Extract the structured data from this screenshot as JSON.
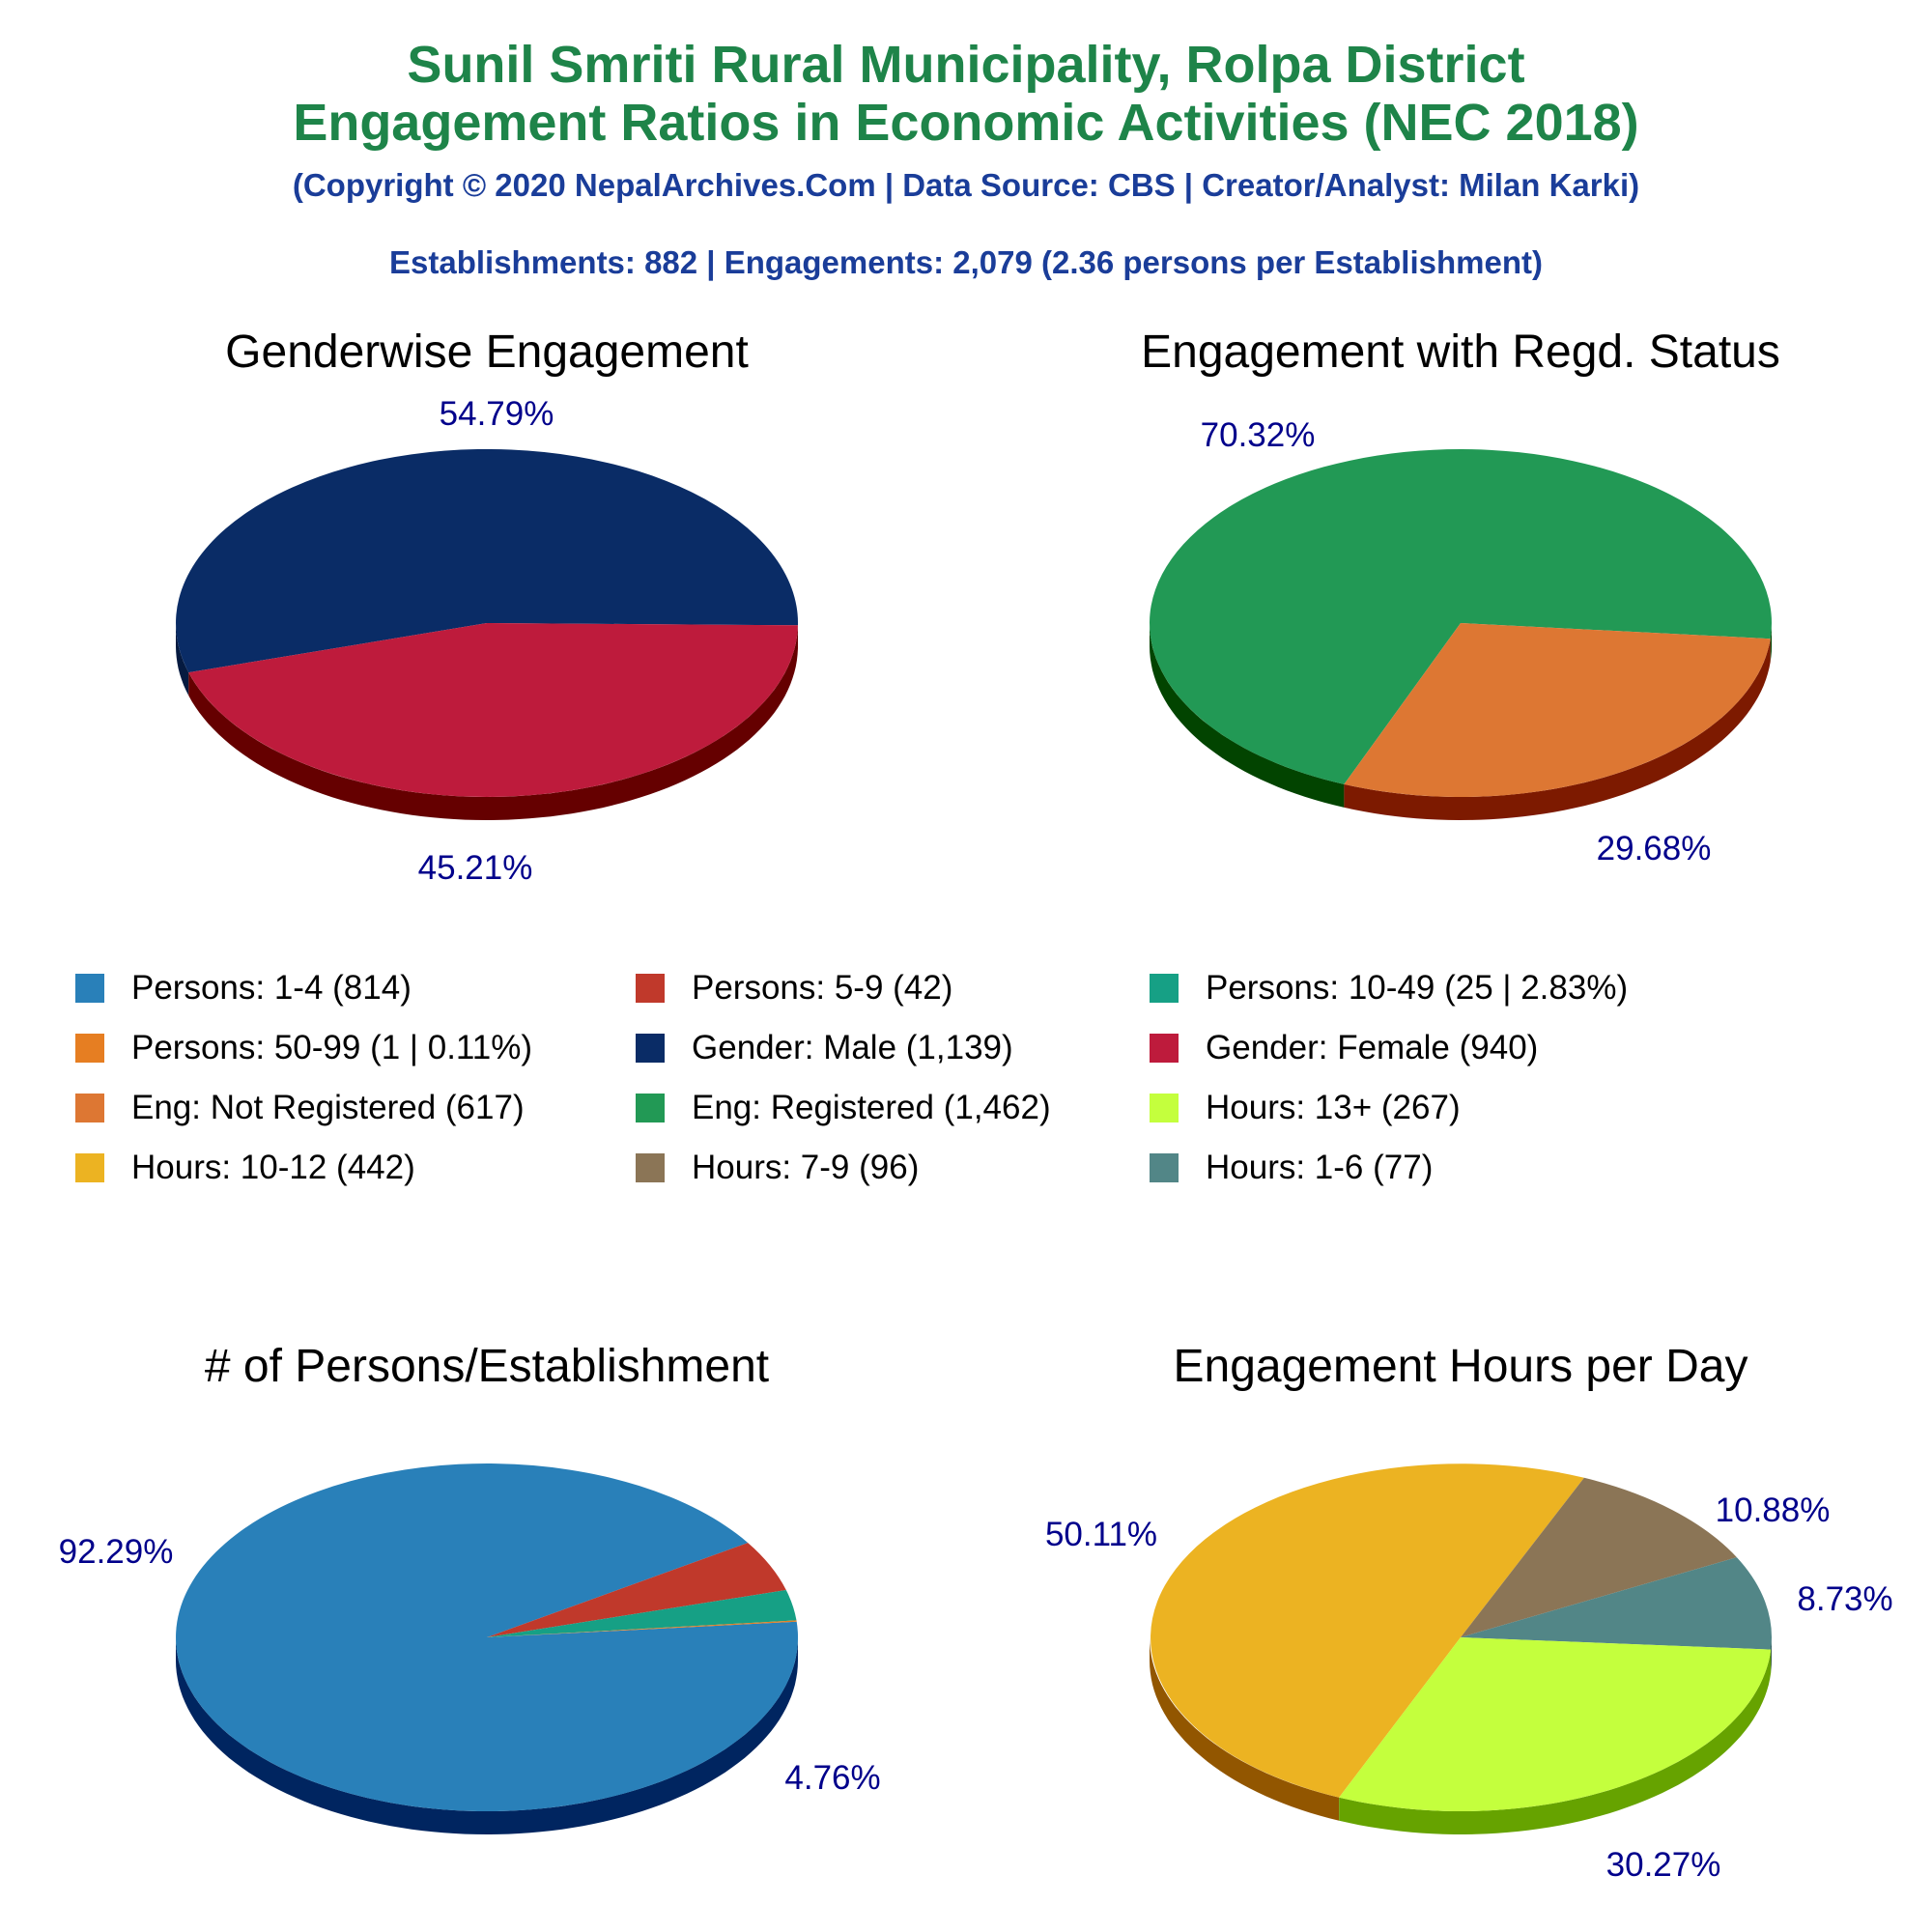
{
  "header": {
    "title_line1": "Sunil Smriti Rural Municipality, Rolpa District",
    "title_line2": "Engagement Ratios in Economic Activities (NEC 2018)",
    "subtitle": "(Copyright © 2020 NepalArchives.Com | Data Source: CBS | Creator/Analyst: Milan Karki)",
    "stats": "Establishments: 882 | Engagements: 2,079 (2.36 persons per Establishment)"
  },
  "colors": {
    "title": "#1e8449",
    "subtitle": "#1a3d99",
    "pct_label": "#00008b",
    "chart_title": "#000000"
  },
  "legend": [
    {
      "label": "Persons: 1-4 (814)",
      "color": "#2980b9"
    },
    {
      "label": "Persons: 5-9 (42)",
      "color": "#c0392b"
    },
    {
      "label": "Persons: 10-49 (25 | 2.83%)",
      "color": "#16a085"
    },
    {
      "label": "Persons: 50-99 (1 | 0.11%)",
      "color": "#e67e22"
    },
    {
      "label": "Gender: Male (1,139)",
      "color": "#0a2c66"
    },
    {
      "label": "Gender: Female (940)",
      "color": "#be1b3c"
    },
    {
      "label": "Eng: Not Registered (617)",
      "color": "#dd7733"
    },
    {
      "label": "Eng: Registered (1,462)",
      "color": "#229955"
    },
    {
      "label": "Hours: 13+ (267)",
      "color": "#c4ff3d"
    },
    {
      "label": "Hours: 10-12 (442)",
      "color": "#ecb322"
    },
    {
      "label": "Hours: 7-9 (96)",
      "color": "#8b7556"
    },
    {
      "label": "Hours: 1-6 (77)",
      "color": "#528687"
    }
  ],
  "chart_data": [
    {
      "type": "pie",
      "title": "Genderwise Engagement",
      "slices": [
        {
          "name": "Gender: Male",
          "value": 1139,
          "pct_label": "54.79%",
          "color": "#0a2c66",
          "side_color": "#051a40"
        },
        {
          "name": "Gender: Female",
          "value": 940,
          "pct_label": "45.21%",
          "color": "#be1b3c",
          "side_color": "#650000"
        }
      ]
    },
    {
      "type": "pie",
      "title": "Engagement with Regd. Status",
      "slices": [
        {
          "name": "Eng: Registered",
          "value": 1462,
          "pct_label": "70.32%",
          "color": "#229955",
          "side_color": "#024400"
        },
        {
          "name": "Eng: Not Registered",
          "value": 617,
          "pct_label": "29.68%",
          "color": "#dd7733",
          "side_color": "#7d1a00"
        }
      ]
    },
    {
      "type": "pie",
      "title": "# of Persons/Establishment",
      "slices": [
        {
          "name": "Persons: 1-4",
          "value": 814,
          "pct_label": "92.29%",
          "color": "#2980b9",
          "side_color": "#002560"
        },
        {
          "name": "Persons: 5-9",
          "value": 42,
          "pct_label": "4.76%",
          "color": "#c0392b",
          "side_color": "#650000"
        },
        {
          "name": "Persons: 10-49",
          "value": 25,
          "pct_label": "",
          "color": "#16a085",
          "side_color": "#004a33"
        },
        {
          "name": "Persons: 50-99",
          "value": 1,
          "pct_label": "",
          "color": "#e67e22",
          "side_color": "#7d2a00"
        }
      ]
    },
    {
      "type": "pie",
      "title": "Engagement Hours per Day",
      "slices": [
        {
          "name": "Hours: 10-12",
          "value": 442,
          "pct_label": "50.11%",
          "color": "#ecb322",
          "side_color": "#925600"
        },
        {
          "name": "Hours: 7-9",
          "value": 96,
          "pct_label": "10.88%",
          "color": "#8b7556",
          "side_color": "#3a2a10"
        },
        {
          "name": "Hours: 1-6",
          "value": 77,
          "pct_label": "8.73%",
          "color": "#528687",
          "side_color": "#0d3335"
        },
        {
          "name": "Hours: 13+",
          "value": 267,
          "pct_label": "30.27%",
          "color": "#c4ff3d",
          "side_color": "#66a300"
        }
      ]
    }
  ]
}
